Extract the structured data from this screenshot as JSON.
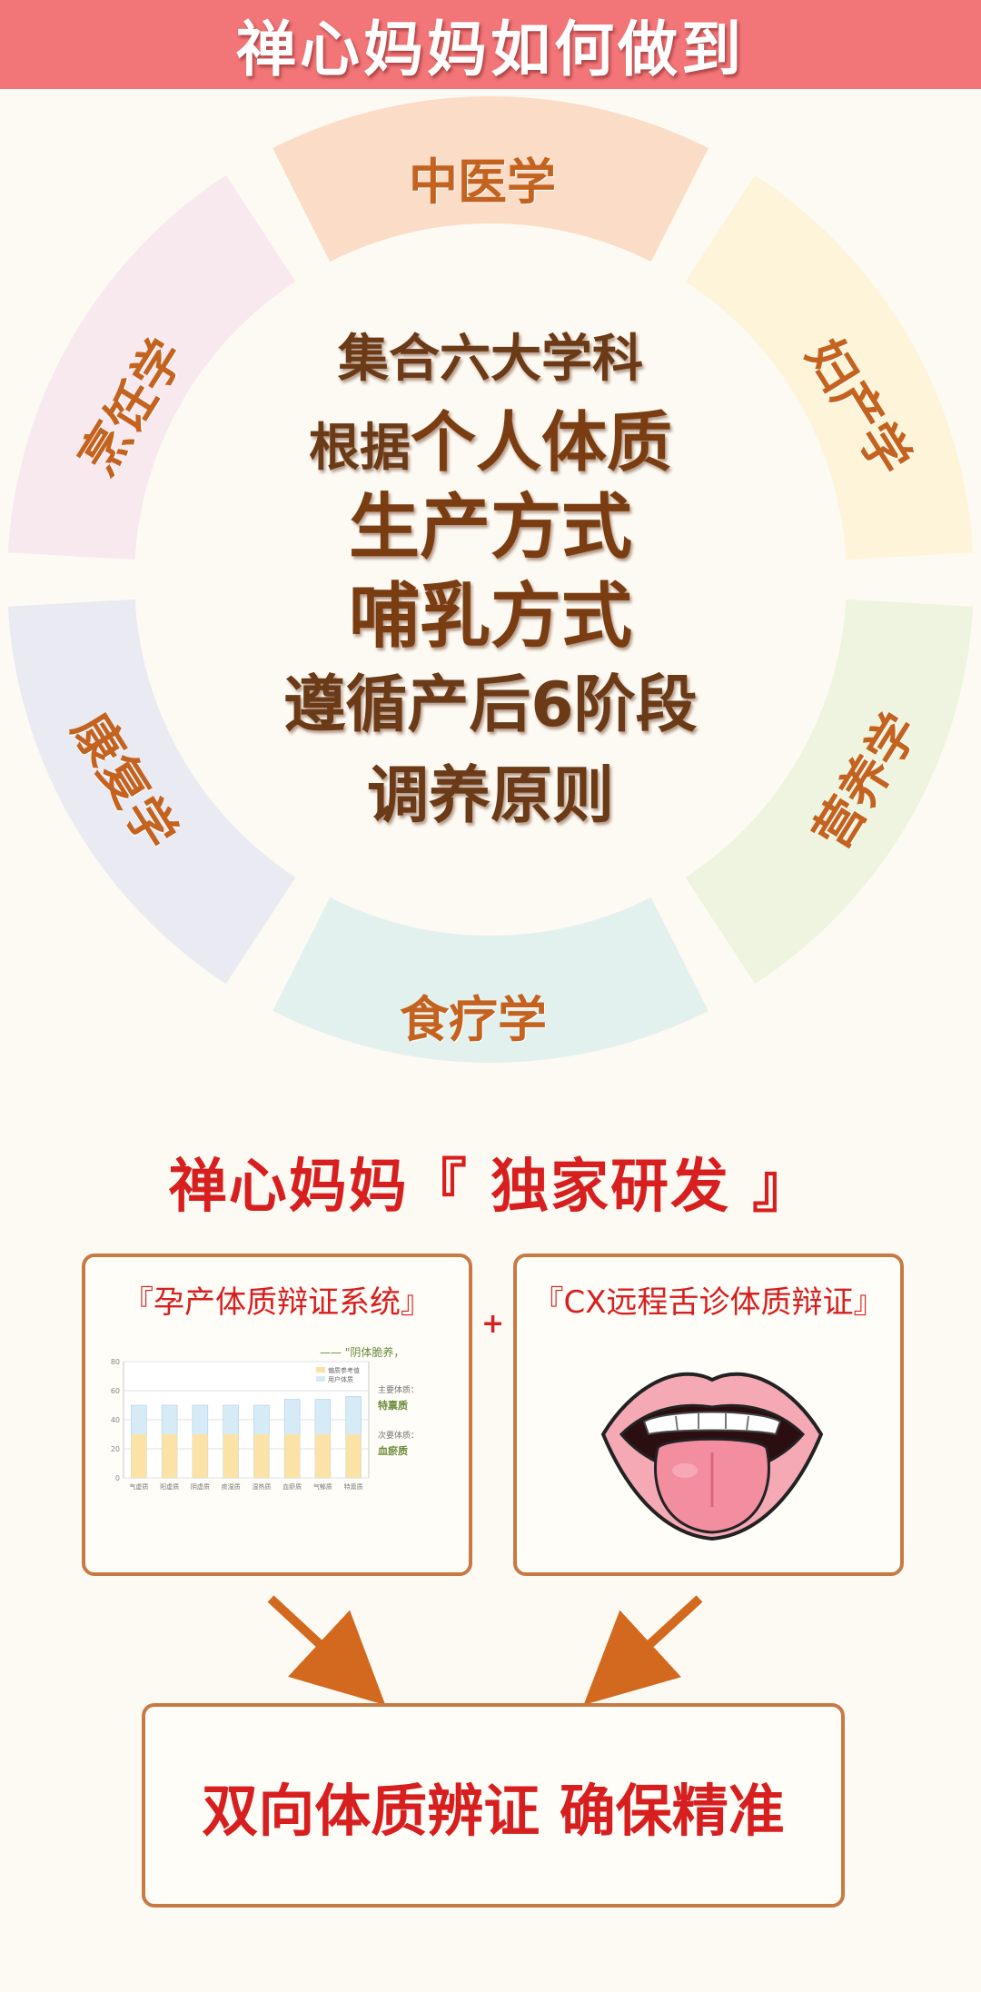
{
  "header": {
    "title": "禅心妈妈如何做到"
  },
  "wheel": {
    "segments": [
      {
        "label": "中医学",
        "color": "#fbdcc7"
      },
      {
        "label": "妇产学",
        "color": "#fdf4d9"
      },
      {
        "label": "营养学",
        "color": "#eef4df"
      },
      {
        "label": "食疗学",
        "color": "#e3f1ee"
      },
      {
        "label": "康复学",
        "color": "#e9eaf2"
      },
      {
        "label": "烹饪学",
        "color": "#f8e9ee"
      }
    ],
    "center_lines": [
      "集合六大学科",
      "根据",
      "个人体质",
      "生产方式",
      "哺乳方式",
      "遵循产后6阶段",
      "调养原则"
    ]
  },
  "section": {
    "title": "禅心妈妈『 独家研发 』"
  },
  "cards": {
    "left": {
      "title": "『孕产体质辩证系统』",
      "chart": {
        "header": "——  \"阴体脆养，",
        "legend": [
          "偏质参考值",
          "用户体质"
        ],
        "y_ticks": [
          "80",
          "60",
          "40",
          "20",
          "0"
        ],
        "categories": [
          "气虚质",
          "阳虚质",
          "阴虚质",
          "痰湿质",
          "湿热质",
          "血瘀质",
          "气郁质",
          "特禀质"
        ],
        "side_labels": {
          "main_label": "主要体质：",
          "main_value": "特禀质",
          "secondary_label": "次要体质：",
          "secondary_value": "血瘀质"
        }
      }
    },
    "plus": "+",
    "right": {
      "title": "『CX远程舌诊体质辩证』",
      "image": "mouth-tongue-illustration"
    }
  },
  "result": {
    "text": "双向体质辨证  确保精准"
  },
  "colors": {
    "header_bg": "#f27577",
    "accent_red": "#d81f1f",
    "ring_label": "#c4621f",
    "card_border": "#c87a45",
    "arrow": "#d2691e"
  },
  "chart_data": {
    "type": "bar",
    "categories": [
      "气虚质",
      "阳虚质",
      "阴虚质",
      "痰湿质",
      "湿热质",
      "血瘀质",
      "气郁质",
      "特禀质"
    ],
    "series": [
      {
        "name": "偏质参考值",
        "values": [
          30,
          30,
          30,
          30,
          30,
          30,
          30,
          30
        ]
      },
      {
        "name": "用户体质",
        "values": [
          50,
          50,
          50,
          50,
          50,
          54,
          54,
          56
        ]
      }
    ],
    "ylim": [
      0,
      80
    ],
    "y_ticks": [
      0,
      20,
      40,
      60,
      80
    ],
    "grid": true,
    "legend": "top-right"
  }
}
